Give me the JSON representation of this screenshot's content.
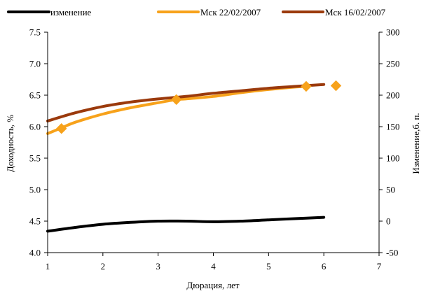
{
  "chart_data": {
    "type": "line",
    "xlabel": "Дюрация, лет",
    "ylabel_left": "Доходность, %",
    "ylabel_right": "Изменение,б. п.",
    "xlim": [
      1,
      7
    ],
    "ylim_left": [
      4.0,
      7.5
    ],
    "ylim_right": [
      -50,
      300
    ],
    "x_ticks": [
      "1",
      "2",
      "3",
      "4",
      "5",
      "6",
      "7"
    ],
    "y_left_ticks": [
      "4.0",
      "4.5",
      "5.0",
      "5.5",
      "6.0",
      "6.5",
      "7.0",
      "7.5"
    ],
    "y_right_ticks": [
      "-50",
      "0",
      "50",
      "100",
      "150",
      "200",
      "250",
      "300"
    ],
    "grid": false,
    "legend_position": "top",
    "series": [
      {
        "name": "изменение",
        "axis": "right",
        "color": "#000000",
        "x": [
          1.0,
          1.5,
          2.0,
          2.5,
          3.0,
          3.5,
          4.0,
          4.5,
          5.0,
          5.5,
          6.0
        ],
        "y": [
          -16,
          -10,
          -5,
          -2,
          0,
          0,
          -1,
          0,
          2,
          4,
          6
        ]
      },
      {
        "name": "Мск 22/02/2007",
        "axis": "left",
        "color": "#F7A21B",
        "x": [
          1.0,
          1.25,
          1.5,
          2.0,
          2.5,
          3.0,
          3.33,
          3.5,
          4.0,
          4.5,
          5.0,
          5.5,
          5.68
        ],
        "y": [
          5.89,
          5.98,
          6.07,
          6.2,
          6.3,
          6.38,
          6.43,
          6.44,
          6.48,
          6.54,
          6.59,
          6.63,
          6.64
        ],
        "markers": {
          "x": [
            1.25,
            3.33,
            5.68,
            6.22
          ],
          "y": [
            5.97,
            6.43,
            6.64,
            6.65
          ]
        }
      },
      {
        "name": "Мск 16/02/2007",
        "axis": "left",
        "color": "#9B3A0C",
        "x": [
          1.0,
          1.5,
          2.0,
          2.5,
          3.0,
          3.5,
          4.0,
          4.5,
          5.0,
          5.5,
          6.0
        ],
        "y": [
          6.09,
          6.22,
          6.32,
          6.39,
          6.44,
          6.48,
          6.53,
          6.57,
          6.61,
          6.64,
          6.67
        ]
      }
    ]
  }
}
